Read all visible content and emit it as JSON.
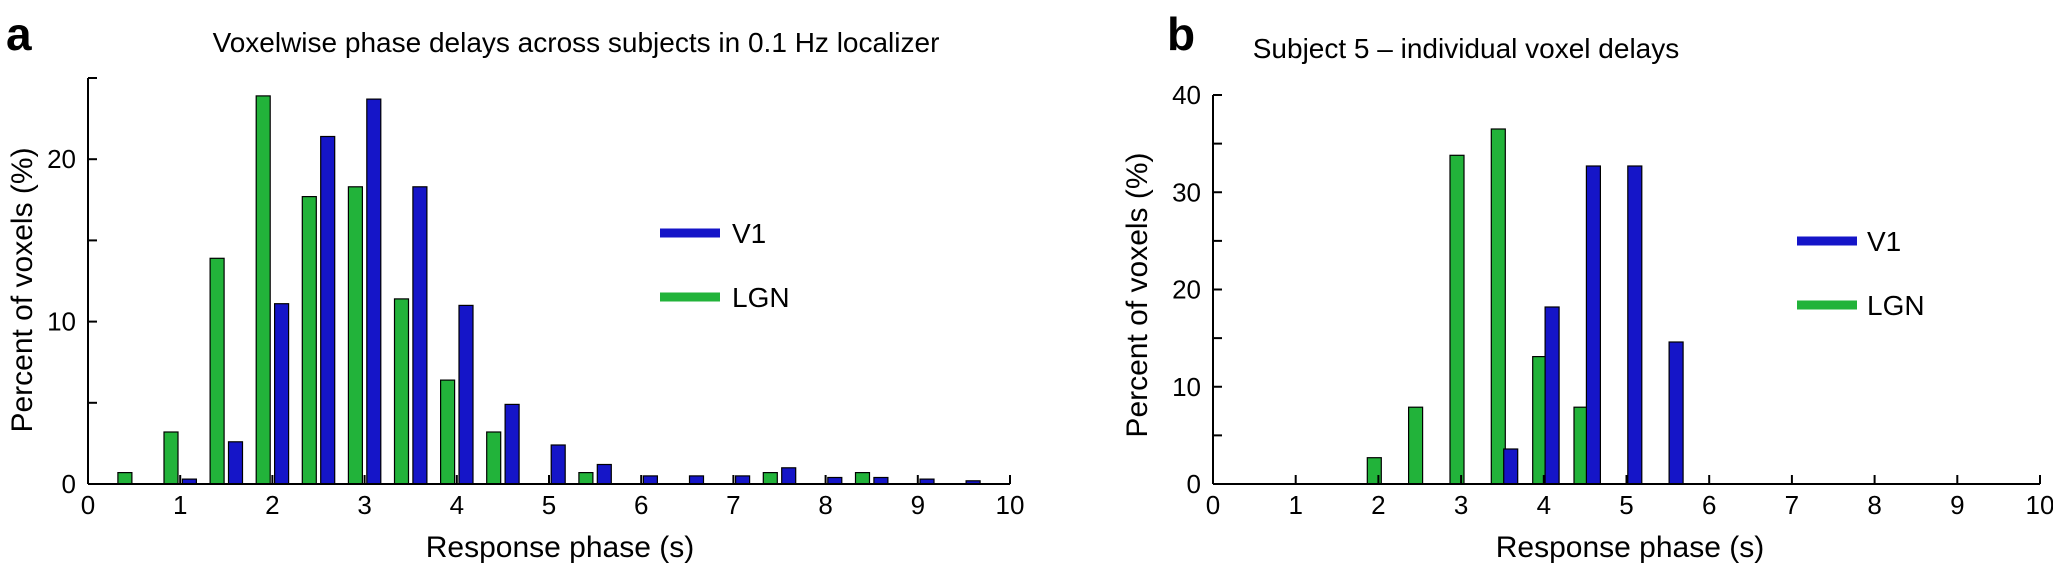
{
  "chart_data": [
    {
      "panel": "a",
      "type": "bar",
      "title": "Voxelwise phase delays across subjects in 0.1 Hz localizer",
      "xlabel": "Response phase (s)",
      "ylabel": "Percent of voxels (%)",
      "xlim": [
        0,
        10
      ],
      "ylim": [
        0,
        25
      ],
      "xticks": [
        0,
        1,
        2,
        3,
        4,
        5,
        6,
        7,
        8,
        9,
        10
      ],
      "yticks": [
        0,
        10,
        20
      ],
      "legend": [
        "V1",
        "LGN"
      ],
      "series": [
        {
          "name": "LGN",
          "color": "#22b33a",
          "x": [
            0.4,
            0.9,
            1.4,
            1.9,
            2.4,
            2.9,
            3.4,
            3.9,
            4.4,
            5.4,
            7.4,
            8.4
          ],
          "values": [
            0.7,
            3.2,
            13.9,
            23.9,
            17.7,
            18.3,
            11.4,
            6.4,
            3.2,
            0.7,
            0.7,
            0.7
          ]
        },
        {
          "name": "V1",
          "color": "#1515c8",
          "x": [
            1.1,
            1.6,
            2.1,
            2.6,
            3.1,
            3.6,
            4.1,
            4.6,
            5.1,
            5.6,
            6.1,
            6.6,
            7.1,
            7.6,
            8.1,
            8.6,
            9.1,
            9.6
          ],
          "values": [
            0.3,
            2.6,
            11.1,
            21.4,
            23.7,
            18.3,
            11.0,
            4.9,
            2.4,
            1.2,
            0.5,
            0.5,
            0.5,
            1.0,
            0.4,
            0.4,
            0.3,
            0.2
          ]
        }
      ]
    },
    {
      "panel": "b",
      "type": "bar",
      "title": "Subject 5 – individual voxel delays",
      "xlabel": "Response phase (s)",
      "ylabel": "Percent of voxels (%)",
      "xlim": [
        0,
        10
      ],
      "ylim": [
        0,
        40
      ],
      "xticks": [
        0,
        1,
        2,
        3,
        4,
        5,
        6,
        7,
        8,
        9,
        10
      ],
      "yticks": [
        0,
        10,
        20,
        30,
        40
      ],
      "legend": [
        "V1",
        "LGN"
      ],
      "series": [
        {
          "name": "LGN",
          "color": "#22b33a",
          "x": [
            1.95,
            2.45,
            2.95,
            3.45,
            3.95,
            4.45
          ],
          "values": [
            2.7,
            7.9,
            33.8,
            36.5,
            13.1,
            7.9
          ]
        },
        {
          "name": "V1",
          "color": "#1515c8",
          "x": [
            3.6,
            4.1,
            4.6,
            5.1,
            5.6
          ],
          "values": [
            3.6,
            18.2,
            32.7,
            32.7,
            14.6
          ]
        }
      ]
    }
  ]
}
